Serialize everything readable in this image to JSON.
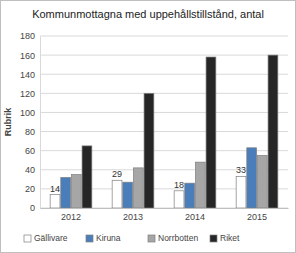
{
  "chart_data": {
    "type": "bar",
    "title": "Kommunmottagna med uppehållstillstånd, antal",
    "y_label": "Rubrik",
    "categories": [
      "2012",
      "2013",
      "2014",
      "2015"
    ],
    "series": [
      {
        "name": "Gällivare",
        "color": "#ffffff",
        "values": [
          14,
          29,
          18,
          33
        ],
        "data_labels": true
      },
      {
        "name": "Kiruna",
        "color": "#4a7ebb",
        "values": [
          32,
          27,
          26,
          63
        ]
      },
      {
        "name": "Norrbotten",
        "color": "#a6a6a6",
        "values": [
          35,
          42,
          48,
          55
        ]
      },
      {
        "name": "Riket",
        "color": "#262626",
        "values": [
          65,
          120,
          158,
          160
        ]
      }
    ],
    "ylim": [
      0,
      180
    ],
    "yticks": [
      0,
      20,
      40,
      60,
      80,
      100,
      120,
      140,
      160,
      180
    ],
    "grid": true,
    "legend": "bottom"
  }
}
